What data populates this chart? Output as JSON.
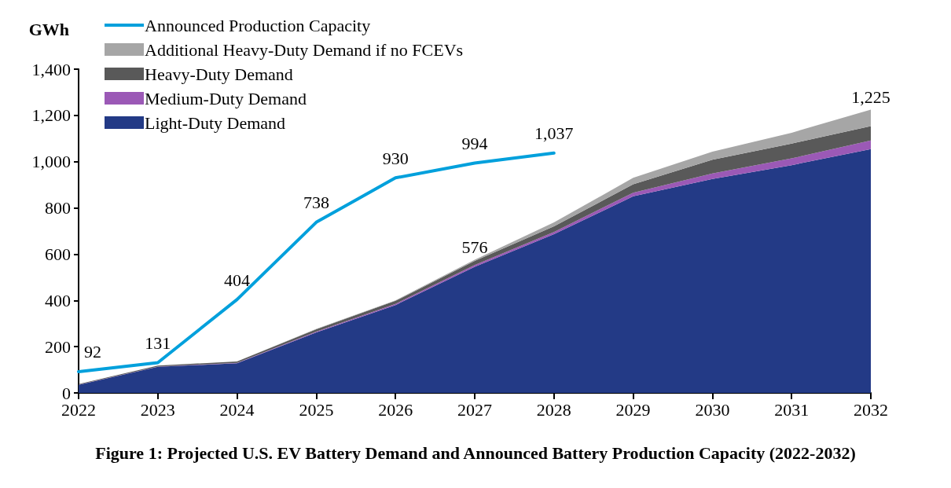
{
  "chart_data": {
    "type": "area",
    "title": "Figure 1: Projected U.S. EV Battery Demand and Announced Battery Production Capacity (2022-2032)",
    "ylabel": "GWh",
    "categories": [
      "2022",
      "2023",
      "2024",
      "2025",
      "2026",
      "2027",
      "2028",
      "2029",
      "2030",
      "2031",
      "2032"
    ],
    "stacked": true,
    "series": [
      {
        "name": "Light-Duty Demand",
        "color": "#233a86",
        "values": [
          35,
          113,
          128,
          262,
          380,
          545,
          686,
          850,
          925,
          985,
          1054
        ]
      },
      {
        "name": "Medium-Duty Demand",
        "color": "#9b59b6",
        "values": [
          1,
          1,
          2,
          3,
          5,
          8,
          10,
          16,
          24,
          29,
          38
        ]
      },
      {
        "name": "Heavy-Duty Demand",
        "color": "#595959",
        "values": [
          2,
          4,
          6,
          10,
          13,
          18,
          24,
          36,
          59,
          64,
          62
        ]
      },
      {
        "name": "Additional Heavy-Duty Demand if no FCEVs",
        "color": "#a6a6a6",
        "values": [
          0,
          0,
          0,
          2,
          2,
          5,
          17,
          28,
          35,
          47,
          71
        ]
      },
      {
        "name": "Announced Production Capacity",
        "type": "line",
        "color": "#00a0dc",
        "values": [
          92,
          131,
          404,
          738,
          930,
          994,
          1037,
          null,
          null,
          null,
          null
        ],
        "value_labels": [
          "92",
          "131",
          "404",
          "738",
          "930",
          "994",
          "1,037",
          null,
          null,
          null,
          null
        ]
      }
    ],
    "totals": [
      null,
      null,
      null,
      null,
      null,
      "576",
      null,
      null,
      null,
      null,
      "1,225"
    ],
    "ylim": [
      0,
      1400
    ],
    "yticks": [
      0,
      {
        "value": 200,
        "label": "200"
      },
      {
        "value": 400,
        "label": "400"
      },
      {
        "value": 600,
        "label": "600"
      },
      {
        "value": 800,
        "label": "800"
      },
      {
        "value": 1000,
        "label": "1,000"
      },
      {
        "value": 1200,
        "label": "1,200"
      },
      {
        "value": 1400,
        "label": "1,400"
      }
    ],
    "grid": false,
    "legend": "top left",
    "marker": "none",
    "line_style": "solid"
  }
}
